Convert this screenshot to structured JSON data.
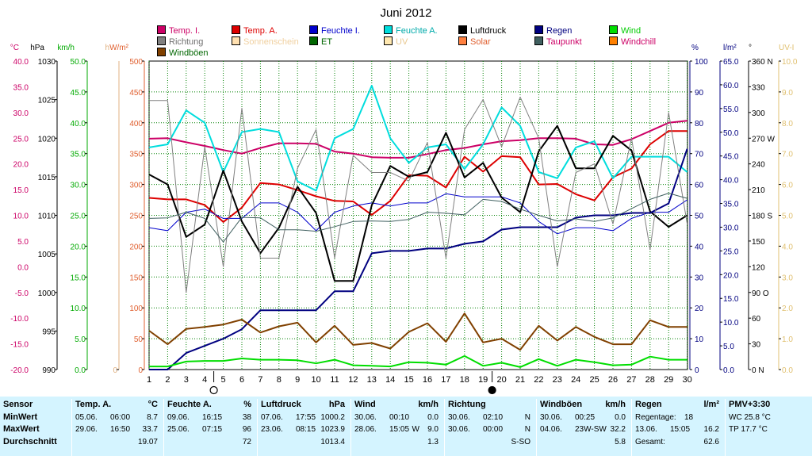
{
  "chart_data": {
    "type": "line",
    "title": "Juni 2012",
    "x": [
      1,
      2,
      3,
      4,
      5,
      6,
      7,
      8,
      9,
      10,
      11,
      12,
      13,
      14,
      15,
      16,
      17,
      18,
      19,
      20,
      21,
      22,
      23,
      24,
      25,
      26,
      27,
      28,
      29,
      30
    ],
    "axes": [
      {
        "unit": "°C",
        "color": "#cc0066",
        "ticks": [
          "40.0",
          "35.0",
          "30.0",
          "25.0",
          "20.0",
          "15.0",
          "10.0",
          "5.0",
          "0.0",
          "-5.0",
          "-10.0",
          "-15.0",
          "-20.0"
        ]
      },
      {
        "unit": "hPa",
        "color": "#000000",
        "ticks": [
          "1030",
          "1025",
          "1020",
          "1015",
          "1010",
          "1005",
          "1000",
          "995",
          "990"
        ]
      },
      {
        "unit": "km/h",
        "color": "#00aa00",
        "ticks": [
          "50.0",
          "45.0",
          "40.0",
          "35.0",
          "30.0",
          "25.0",
          "20.0",
          "15.0",
          "10.0",
          "5.0",
          "0.0"
        ]
      },
      {
        "unit": "h",
        "color": "#e0b080",
        "ticks": [
          "0"
        ]
      },
      {
        "unit": "W/m²",
        "color": "#e06030",
        "ticks": [
          "500",
          "450",
          "400",
          "350",
          "300",
          "250",
          "200",
          "150",
          "100",
          "50",
          "0"
        ]
      },
      {
        "unit": "%",
        "color": "#000080",
        "ticks": [
          "100",
          "90",
          "80",
          "70",
          "60",
          "50",
          "40",
          "30",
          "20",
          "10",
          "0"
        ]
      },
      {
        "unit": "l/m²",
        "color": "#000080",
        "ticks": [
          "65.0",
          "60.0",
          "55.0",
          "50.0",
          "45.0",
          "40.0",
          "35.0",
          "30.0",
          "25.0",
          "20.0",
          "15.0",
          "10.0",
          "5.0",
          "0.0"
        ]
      },
      {
        "unit": "°",
        "color": "#000000",
        "ticks": [
          "360 N",
          "330",
          "300",
          "270 W",
          "240",
          "210",
          "180 S",
          "150",
          "120",
          "90 O",
          "60",
          "30",
          "0 N"
        ]
      },
      {
        "unit": "UV-I",
        "color": "#e0c070",
        "ticks": [
          "10.0",
          "9.0",
          "8.0",
          "7.0",
          "6.0",
          "5.0",
          "4.0",
          "3.0",
          "2.0",
          "1.0",
          "0.0"
        ]
      }
    ],
    "series": [
      {
        "name": "Temp. I.",
        "color": "#cc0066",
        "axis": "°C",
        "width": 2,
        "values": [
          24.9,
          25.0,
          24.2,
          23.5,
          22.7,
          22.0,
          23.1,
          24.0,
          24.0,
          23.9,
          22.4,
          22.0,
          21.3,
          21.2,
          21.2,
          21.9,
          22.7,
          23.1,
          23.8,
          24.4,
          24.6,
          25.0,
          25.0,
          24.9,
          23.8,
          23.7,
          24.8,
          26.4,
          28.0,
          28.4
        ]
      },
      {
        "name": "Temp. A.",
        "color": "#dd0000",
        "axis": "°C",
        "width": 2,
        "values": [
          13.4,
          13.1,
          13.1,
          12.0,
          8.7,
          11.5,
          16.3,
          16.0,
          14.9,
          13.7,
          12.8,
          12.7,
          10.1,
          12.8,
          17.8,
          17.7,
          15.4,
          21.4,
          18.5,
          21.5,
          21.3,
          16.0,
          16.1,
          14.1,
          12.9,
          17.4,
          19.1,
          23.8,
          26.4,
          26.4
        ]
      },
      {
        "name": "Feuchte I.",
        "color": "#0000cc",
        "axis": "%",
        "width": 1,
        "values": [
          46,
          45,
          51,
          52,
          49,
          49,
          54,
          54,
          51,
          45,
          51,
          53,
          54,
          53,
          54,
          54,
          57,
          56,
          56,
          56,
          54,
          48,
          44,
          46,
          46,
          45,
          49,
          51,
          51,
          55
        ]
      },
      {
        "name": "Feuchte A.",
        "color": "#00dddd",
        "axis": "%",
        "width": 2,
        "values": [
          72,
          73,
          84,
          80,
          64,
          77,
          78,
          77,
          61,
          58,
          75,
          78,
          92,
          75,
          67,
          72,
          73,
          65,
          73,
          85,
          79,
          64,
          62,
          72,
          74,
          62,
          69,
          69,
          69,
          64
        ]
      },
      {
        "name": "Luftdruck",
        "color": "#000000",
        "axis": "hPa",
        "width": 2,
        "values": [
          1015.3,
          1014,
          1007.2,
          1008.8,
          1015.8,
          1009.2,
          1005.1,
          1008.4,
          1013.7,
          1010.3,
          1001.5,
          1001.5,
          1011.3,
          1016.4,
          1015.0,
          1015.6,
          1020.7,
          1014.9,
          1016.8,
          1012.3,
          1010.4,
          1018.3,
          1021.6,
          1016.1,
          1016.1,
          1020.3,
          1018.4,
          1010.5,
          1008.5,
          1010.0
        ]
      },
      {
        "name": "Regen",
        "color": "#000080",
        "axis": "l/m²",
        "width": 2,
        "values": [
          0.0,
          0.0,
          3.5,
          5.0,
          6.5,
          8.5,
          12.5,
          12.5,
          12.5,
          12.5,
          16.5,
          16.5,
          24.5,
          25.0,
          25.0,
          25.5,
          25.5,
          26.5,
          27.0,
          29.5,
          30.0,
          30.0,
          30.0,
          32.0,
          32.5,
          32.5,
          33.0,
          33.0,
          35.0,
          46.5
        ]
      },
      {
        "name": "Wind",
        "color": "#00dd00",
        "axis": "km/h",
        "width": 2,
        "values": [
          0.5,
          0.5,
          1.3,
          1.4,
          1.4,
          1.8,
          1.6,
          1.6,
          1.5,
          1.0,
          1.6,
          0.7,
          0.6,
          0.5,
          1.2,
          1.1,
          0.8,
          2.2,
          0.6,
          1.1,
          0.4,
          1.7,
          0.6,
          1.6,
          1.2,
          0.7,
          0.8,
          2.1,
          1.6,
          1.6
        ]
      },
      {
        "name": "Windböen",
        "color": "#804000",
        "axis": "km/h",
        "width": 2,
        "values": [
          6.3,
          4.1,
          6.6,
          6.9,
          7.3,
          8.1,
          6.0,
          7.0,
          7.6,
          4.4,
          7.1,
          4.0,
          4.3,
          3.4,
          6.1,
          7.5,
          4.5,
          9.1,
          4.4,
          5.0,
          3.2,
          7.1,
          4.7,
          6.9,
          5.3,
          4.1,
          4.1,
          8.0,
          6.9,
          6.9
        ]
      },
      {
        "name": "Richtung",
        "color": "#808080",
        "axis": "°",
        "width": 1,
        "values": [
          314,
          314,
          90,
          260,
          120,
          305,
          130,
          130,
          235,
          280,
          130,
          250,
          230,
          230,
          220,
          265,
          130,
          280,
          315,
          260,
          318,
          270,
          120,
          230,
          240,
          170,
          270,
          140,
          300,
          170
        ]
      },
      {
        "name": "Taupunkt",
        "color": "#406060",
        "axis": "°C",
        "width": 1,
        "values": [
          9.4,
          9.5,
          10.6,
          9.4,
          4.8,
          9.6,
          9.5,
          7.2,
          7.2,
          6.9,
          7.8,
          8.8,
          8.9,
          8.8,
          9.2,
          10.6,
          10.4,
          10.1,
          13.1,
          12.7,
          11.2,
          10.0,
          8.9,
          9.3,
          8.8,
          9.5,
          11.3,
          13.1,
          14.3,
          13.3
        ]
      }
    ],
    "moon_phases": [
      {
        "day": 5,
        "phase": "full"
      },
      {
        "day": 20,
        "phase": "new"
      }
    ]
  },
  "legend": [
    {
      "label": "Temp. I.",
      "color": "#cc0066",
      "text_color": "#cc0066"
    },
    {
      "label": "Temp. A.",
      "color": "#dd0000",
      "text_color": "#dd0000"
    },
    {
      "label": "Feuchte I.",
      "color": "#0000cc",
      "text_color": "#0000cc"
    },
    {
      "label": "Feuchte A.",
      "color": "#00dddd",
      "text_color": "#00aaaa"
    },
    {
      "label": "Luftdruck",
      "color": "#000000",
      "text_color": "#000000"
    },
    {
      "label": "Regen",
      "color": "#000080",
      "text_color": "#000080"
    },
    {
      "label": "Wind",
      "color": "#00dd00",
      "text_color": "#00cc00"
    },
    {
      "label": "Richtung",
      "color": "#808080",
      "text_color": "#707070"
    },
    {
      "label": "Sonnenschein",
      "color": "#ffe0b0",
      "text_color": "#f0d0a0"
    },
    {
      "label": "ET",
      "color": "#006600",
      "text_color": "#006600"
    },
    {
      "label": "UV",
      "color": "#ffe8b0",
      "text_color": "#e8c890"
    },
    {
      "label": "Solar",
      "color": "#ff8040",
      "text_color": "#e06030"
    },
    {
      "label": "Taupunkt",
      "color": "#406060",
      "text_color": "#cc0066"
    },
    {
      "label": "Windchill",
      "color": "#ff8000",
      "text_color": "#cc0066"
    },
    {
      "label": "Windböen",
      "color": "#804000",
      "text_color": "#006600"
    }
  ],
  "stats": {
    "sensor": {
      "title": "Sensor",
      "rows": [
        "MinWert",
        "MaxWert",
        "Durchschnitt"
      ]
    },
    "temp_a": {
      "title": "Temp. A.",
      "unit": "°C",
      "min_date": "05.06.",
      "min_time": "06:00",
      "min": "8.7",
      "max_date": "29.06.",
      "max_time": "16:50",
      "max": "33.7",
      "avg": "19.07"
    },
    "feuchte_a": {
      "title": "Feuchte A.",
      "unit": "%",
      "min_date": "09.06.",
      "min_time": "16:15",
      "min": "38",
      "max_date": "25.06.",
      "max_time": "07:15",
      "max": "96",
      "avg": "72"
    },
    "luftdruck": {
      "title": "Luftdruck",
      "unit": "hPa",
      "min_date": "07.06.",
      "min_time": "17:55",
      "min": "1000.2",
      "max_date": "23.06.",
      "max_time": "08:15",
      "max": "1023.9",
      "avg": "1013.4"
    },
    "wind": {
      "title": "Wind",
      "unit": "km/h",
      "min_date": "30.06.",
      "min_time": "00:10",
      "min": "0.0",
      "max_date": "28.06.",
      "max_time": "15:05",
      "max_dir": "W",
      "max": "9.0",
      "avg": "1.3"
    },
    "richtung": {
      "title": "Richtung",
      "min_date": "30.06.",
      "min_time": "02:10",
      "min": "N",
      "max_date": "30.06.",
      "max_time": "00:00",
      "max": "N",
      "avg": "S-SO"
    },
    "windboeen": {
      "title": "Windböen",
      "unit": "km/h",
      "min_date": "30.06.",
      "min_time": "00:25",
      "min": "0.0",
      "max_date": "04.06.",
      "max_time": "23W-SW",
      "max": "32.2",
      "avg": "5.8"
    },
    "regen": {
      "title": "Regen",
      "unit": "l/m²",
      "r1_label": "Regentage:",
      "r1_value": "18",
      "r2_label": "13.06.",
      "r2_time": "15:05",
      "r2_value": "16.2",
      "r3_label": "Gesamt:",
      "r3_value": "62.6"
    },
    "pmv": {
      "title": "PMV+3:30",
      "line1": "WC 25.8 °C",
      "line2": "TP 17.7 °C"
    }
  }
}
